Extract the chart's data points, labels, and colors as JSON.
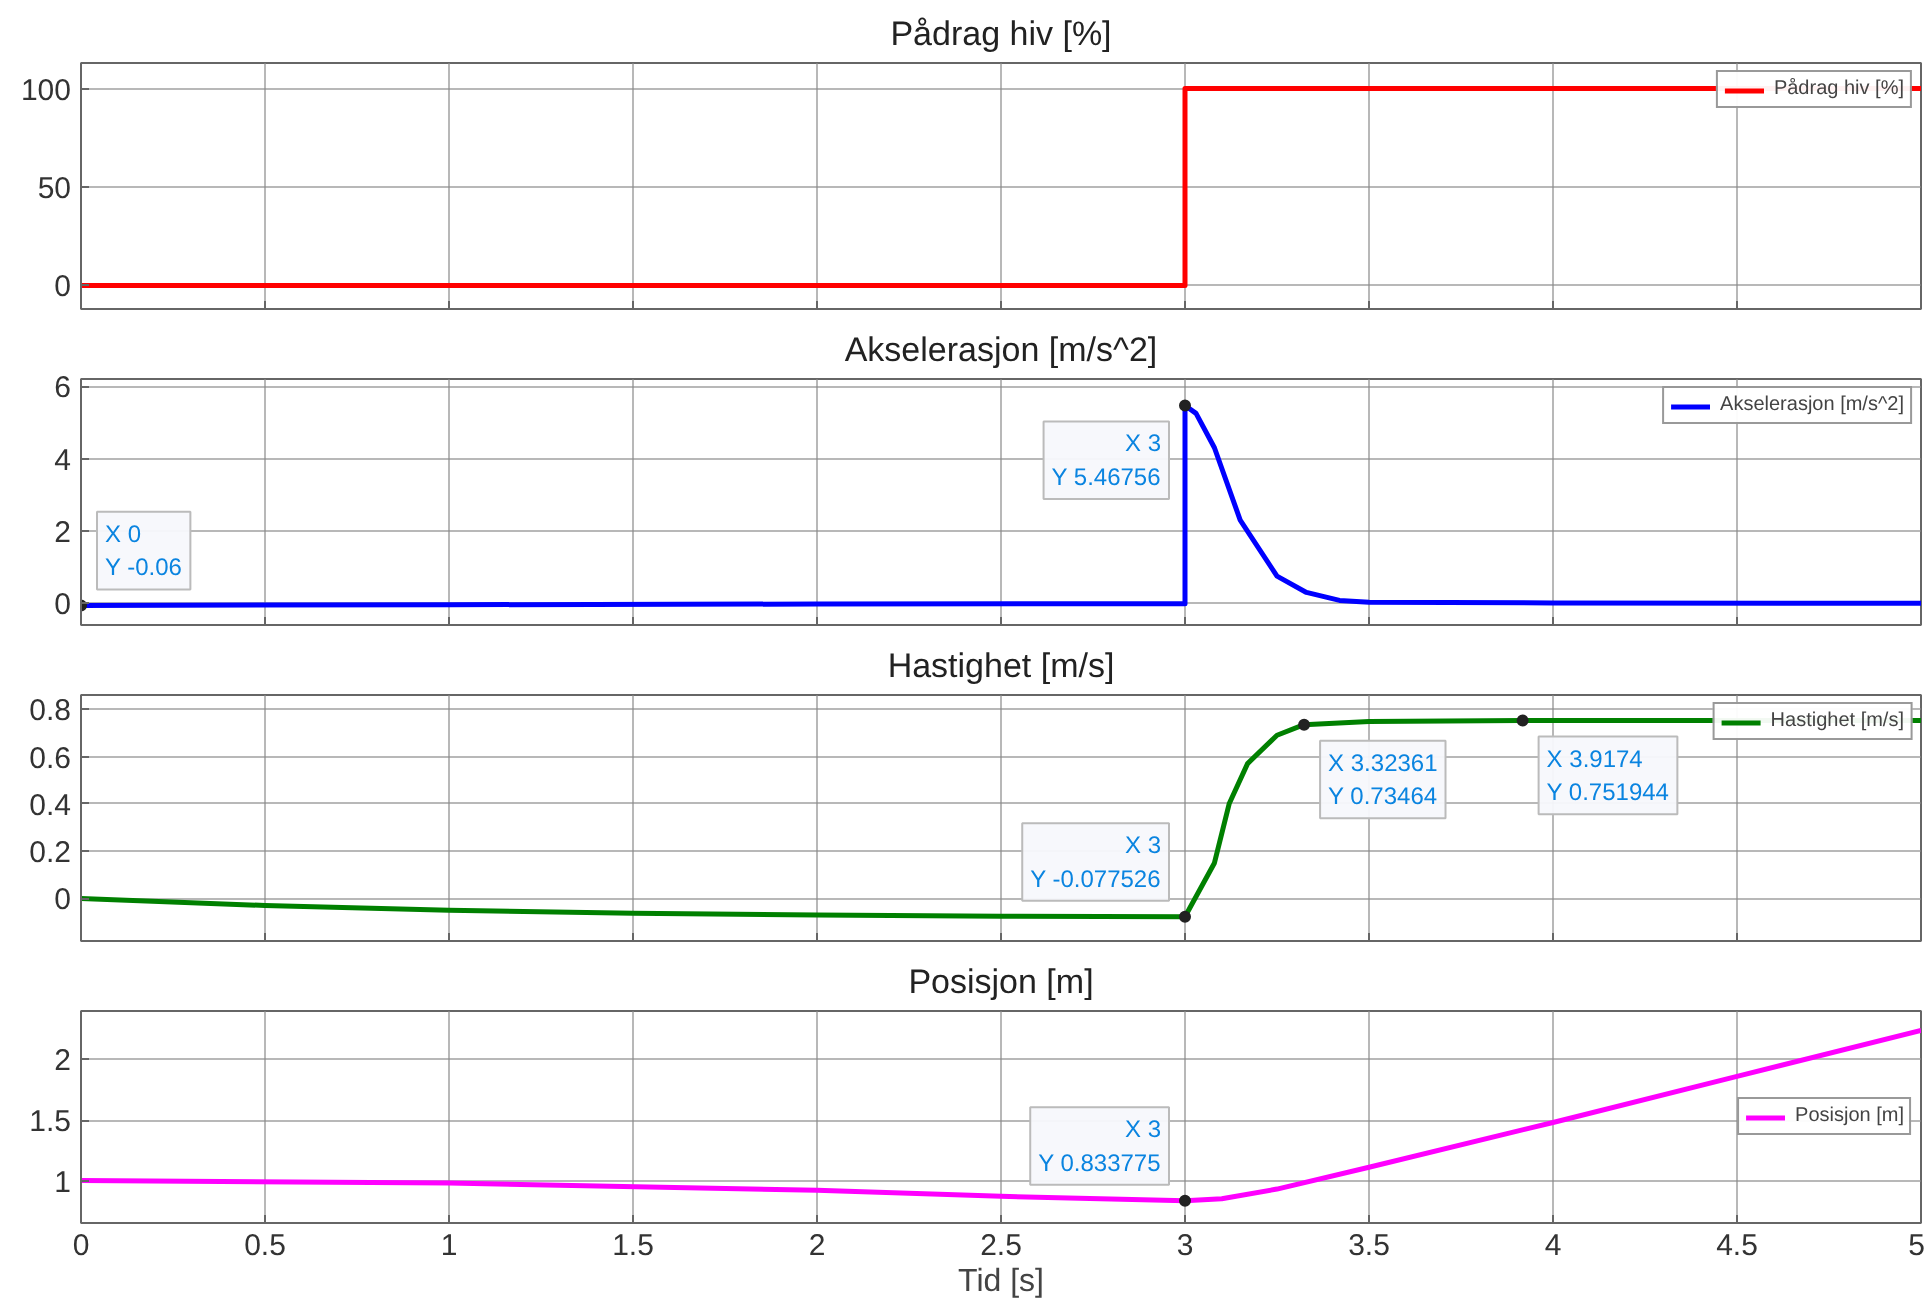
{
  "chart_data": [
    {
      "type": "line",
      "title": "Pådrag hiv [%]",
      "xlim": [
        0,
        5
      ],
      "xticks": [
        0,
        0.5,
        1,
        1.5,
        2,
        2.5,
        3,
        3.5,
        4,
        4.5,
        5
      ],
      "ylim": [
        -12,
        113
      ],
      "yticks": [
        0,
        50,
        100
      ],
      "grid": true,
      "legend": "top right",
      "tick_labels": "y",
      "series": [
        {
          "name": "Pådrag hiv [%]",
          "color": "#ff0000",
          "x": [
            0,
            3,
            3,
            5
          ],
          "values": [
            0,
            0,
            100,
            100
          ]
        }
      ]
    },
    {
      "type": "line",
      "title": "Akselerasjon [m/s^2]",
      "xlim": [
        0,
        5
      ],
      "xticks": [
        0,
        0.5,
        1,
        1.5,
        2,
        2.5,
        3,
        3.5,
        4,
        4.5,
        5
      ],
      "ylim": [
        -0.6,
        6.2
      ],
      "yticks": [
        0,
        2,
        4,
        6
      ],
      "grid": true,
      "legend": "top right",
      "tick_labels": "y",
      "series": [
        {
          "name": "Akselerasjon [m/s^2]",
          "color": "#0000ff",
          "x": [
            0,
            1,
            2,
            3,
            3,
            3.03,
            3.08,
            3.15,
            3.25,
            3.33,
            3.42,
            3.5,
            4,
            5
          ],
          "values": [
            -0.06,
            -0.04,
            -0.02,
            -0.01,
            5.46756,
            5.25,
            4.3,
            2.3,
            0.75,
            0.3,
            0.08,
            0.03,
            0.01,
            0
          ]
        }
      ],
      "annotations": [
        {
          "text": "X 0\nY -0.06",
          "x": 0,
          "y": -0.06
        },
        {
          "text": "X 3\nY 5.46756",
          "x": 3,
          "y": 5.46756
        }
      ]
    },
    {
      "type": "line",
      "title": "Hastighet [m/s]",
      "xlim": [
        0,
        5
      ],
      "xticks": [
        0,
        0.5,
        1,
        1.5,
        2,
        2.5,
        3,
        3.5,
        4,
        4.5,
        5
      ],
      "ylim": [
        -0.18,
        0.86
      ],
      "yticks": [
        0,
        0.2,
        0.4,
        0.6,
        0.8
      ],
      "grid": true,
      "legend": "top right",
      "tick_labels": "y",
      "series": [
        {
          "name": "Hastighet [m/s]",
          "color": "#008000",
          "x": [
            0,
            0.5,
            1,
            1.5,
            2,
            2.5,
            3,
            3.08,
            3.12,
            3.17,
            3.25,
            3.32361,
            3.5,
            3.9174,
            5
          ],
          "values": [
            0,
            -0.03,
            -0.05,
            -0.063,
            -0.07,
            -0.075,
            -0.077526,
            0.15,
            0.4,
            0.57,
            0.69,
            0.73464,
            0.748,
            0.751944,
            0.752
          ]
        }
      ],
      "annotations": [
        {
          "text": "X 3\nY -0.077526",
          "x": 3,
          "y": -0.077526
        },
        {
          "text": "X 3.32361\nY 0.73464",
          "x": 3.32361,
          "y": 0.73464
        },
        {
          "text": "X 3.9174\nY 0.751944",
          "x": 3.9174,
          "y": 0.751944
        }
      ]
    },
    {
      "type": "line",
      "title": "Posisjon [m]",
      "xlabel": "Tid [s]",
      "xlim": [
        0,
        5
      ],
      "xticks": [
        0,
        0.5,
        1,
        1.5,
        2,
        2.5,
        3,
        3.5,
        4,
        4.5,
        5
      ],
      "ylim": [
        0.65,
        2.4
      ],
      "yticks": [
        1,
        1.5,
        2
      ],
      "grid": true,
      "legend": "right",
      "series": [
        {
          "name": "Posisjon [m]",
          "color": "#ff00ff",
          "x": [
            0,
            1,
            2,
            2.5,
            3,
            3.1,
            3.25,
            3.5,
            4,
            4.5,
            5
          ],
          "values": [
            1,
            0.98,
            0.92,
            0.87,
            0.833775,
            0.85,
            0.93,
            1.11,
            1.48,
            1.86,
            2.24
          ]
        }
      ],
      "annotations": [
        {
          "text": "X 3\nY 0.833775",
          "x": 3,
          "y": 0.833775
        }
      ]
    }
  ]
}
